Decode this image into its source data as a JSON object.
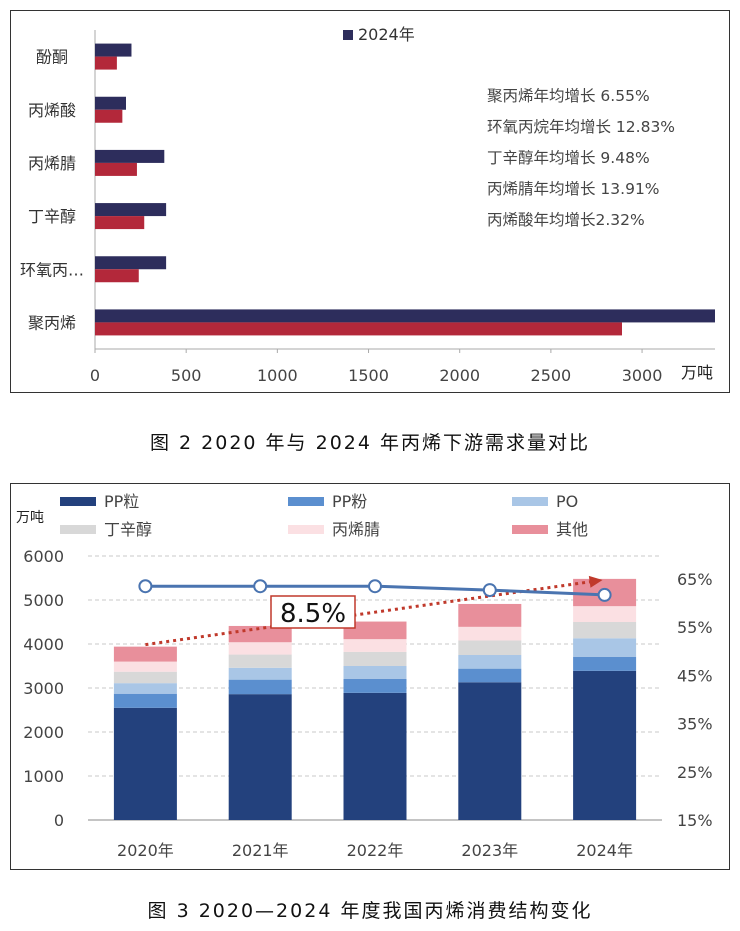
{
  "chart_data": [
    {
      "type": "bar",
      "orientation": "horizontal",
      "categories": [
        "酚酮",
        "丙烯酸",
        "丙烯腈",
        "丁辛醇",
        "环氧丙…",
        "聚丙烯"
      ],
      "series": [
        {
          "name": "2024年",
          "values": [
            200,
            170,
            380,
            390,
            390,
            3400
          ],
          "color": "#2d2d5c"
        },
        {
          "values": [
            120,
            150,
            230,
            270,
            240,
            2890
          ],
          "color": "#b3283a"
        }
      ],
      "xlim": [
        0,
        3400
      ],
      "xticks": [
        0,
        500,
        1000,
        1500,
        2000,
        2500,
        3000
      ],
      "xticklabels": [
        "0",
        "500",
        "1000",
        "1500",
        "2000",
        "2500",
        "3000"
      ],
      "unit": "万吨",
      "legend_placement": "top-center",
      "annotations": [
        "聚丙烯年均增长 6.55%",
        "环氧丙烷年均增长 12.83%",
        "丁辛醇年均增长 9.48%",
        "丙烯腈年均增长 13.91%",
        "丙烯酸年均增长2.32%"
      ]
    },
    {
      "type": "bar",
      "stacked": true,
      "categories": [
        "2020年",
        "2021年",
        "2022年",
        "2023年",
        "2024年"
      ],
      "series": [
        {
          "name": "PP粒",
          "values": [
            2550,
            2860,
            2890,
            3130,
            3390
          ],
          "color": "#23417d"
        },
        {
          "name": "PP粉",
          "values": [
            320,
            330,
            320,
            310,
            320
          ],
          "color": "#5b8fcf"
        },
        {
          "name": "PO",
          "values": [
            240,
            270,
            290,
            310,
            420
          ],
          "color": "#a9c6e6"
        },
        {
          "name": "丁辛醇",
          "values": [
            260,
            300,
            320,
            330,
            370
          ],
          "color": "#d8d8d8"
        },
        {
          "name": "丙烯腈",
          "values": [
            230,
            280,
            290,
            310,
            360
          ],
          "color": "#fbe0e3"
        },
        {
          "name": "其他",
          "values": [
            340,
            370,
            400,
            520,
            620
          ],
          "color": "#e88f9b"
        }
      ],
      "line": {
        "values": [
          63.5,
          63.5,
          63.5,
          62.7,
          61.7
        ],
        "color": "#4a74b0"
      },
      "ylim": [
        0,
        6000
      ],
      "yticks": [
        0,
        1000,
        2000,
        3000,
        4000,
        5000,
        6000
      ],
      "yticklabels": [
        "0",
        "1000",
        "2000",
        "3000",
        "4000",
        "5000",
        "6000"
      ],
      "ylabel": "万吨",
      "y2lim": [
        15,
        70
      ],
      "y2ticks": [
        15,
        25,
        35,
        45,
        55,
        65
      ],
      "y2ticklabels": [
        "15%",
        "25%",
        "35%",
        "45%",
        "55%",
        "65%"
      ],
      "annotation": "8.5%",
      "legend_placement": "top"
    }
  ],
  "captions": {
    "fig2": "图 2  2020 年与 2024 年丙烯下游需求量对比",
    "fig3": "图 3  2020—2024 年度我国丙烯消费结构变化"
  }
}
